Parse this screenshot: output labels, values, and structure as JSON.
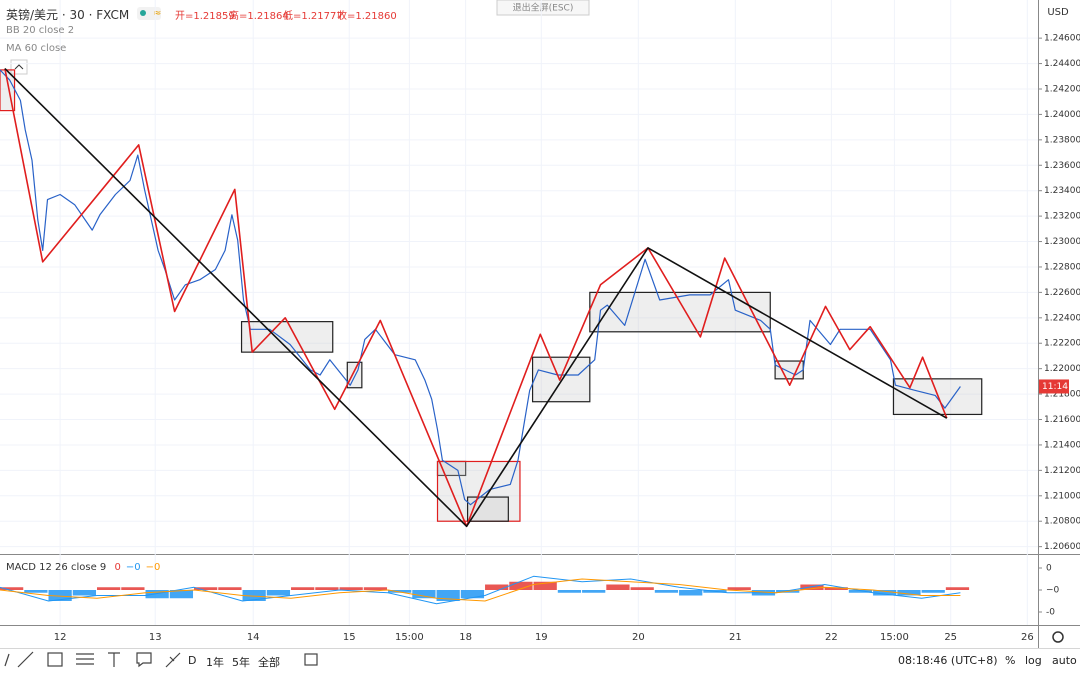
{
  "header": {
    "symbol": "英镑/美元 · 30 · FXCM",
    "ohlc": [
      "开=1.21859",
      "高=1.21864",
      "低=1.21777",
      "收=1.21860"
    ],
    "exit_fullscreen": "退出全屏(ESC)",
    "indicators": [
      "BB 20 close 2",
      "MA 60 close"
    ]
  },
  "chart_data": [
    {
      "type": "line",
      "currency": "USD",
      "price_tag": "11:14",
      "xlim": [
        0,
        10.7
      ],
      "ylim": [
        1.2055,
        1.249
      ],
      "xticks": [
        {
          "value": 0.62,
          "label": "12"
        },
        {
          "value": 1.6,
          "label": "13"
        },
        {
          "value": 2.61,
          "label": "14"
        },
        {
          "value": 3.6,
          "label": "15"
        },
        {
          "value": 4.22,
          "label": "15:00"
        },
        {
          "value": 4.8,
          "label": "18"
        },
        {
          "value": 5.58,
          "label": "19"
        },
        {
          "value": 6.58,
          "label": "20"
        },
        {
          "value": 7.58,
          "label": "21"
        },
        {
          "value": 8.57,
          "label": "22"
        },
        {
          "value": 9.22,
          "label": "15:00"
        },
        {
          "value": 9.8,
          "label": "25"
        },
        {
          "value": 10.59,
          "label": "26"
        }
      ],
      "yticks": [
        {
          "value": 1.246,
          "label": "1.24600"
        },
        {
          "value": 1.244,
          "label": "1.24400"
        },
        {
          "value": 1.242,
          "label": "1.24200"
        },
        {
          "value": 1.24,
          "label": "1.24000"
        },
        {
          "value": 1.238,
          "label": "1.23800"
        },
        {
          "value": 1.236,
          "label": "1.23600"
        },
        {
          "value": 1.234,
          "label": "1.23400"
        },
        {
          "value": 1.232,
          "label": "1.23200"
        },
        {
          "value": 1.23,
          "label": "1.23000"
        },
        {
          "value": 1.228,
          "label": "1.22800"
        },
        {
          "value": 1.226,
          "label": "1.22600"
        },
        {
          "value": 1.224,
          "label": "1.22400"
        },
        {
          "value": 1.222,
          "label": "1.22200"
        },
        {
          "value": 1.22,
          "label": "1.22000"
        },
        {
          "value": 1.218,
          "label": "1.21800"
        },
        {
          "value": 1.216,
          "label": "1.21600"
        },
        {
          "value": 1.214,
          "label": "1.21400"
        },
        {
          "value": 1.212,
          "label": "1.21200"
        },
        {
          "value": 1.21,
          "label": "1.21000"
        },
        {
          "value": 1.208,
          "label": "1.20800"
        },
        {
          "value": 1.206,
          "label": "1.20600"
        }
      ],
      "grid": true,
      "series": [
        {
          "color": "#2962c8",
          "width": 1.2,
          "x": [
            0,
            0.1,
            0.21,
            0.26,
            0.33,
            0.39,
            0.44,
            0.49,
            0.62,
            0.77,
            0.95,
            1.03,
            1.19,
            1.34,
            1.42,
            1.49,
            1.63,
            1.7,
            1.8,
            1.91,
            2.06,
            2.22,
            2.32,
            2.39,
            2.45,
            2.51,
            2.58,
            2.78,
            2.99,
            3.2,
            3.3,
            3.4,
            3.61,
            3.69,
            3.76,
            3.87,
            4.07,
            4.28,
            4.38,
            4.45,
            4.51,
            4.56,
            4.72,
            4.79,
            4.85,
            5.05,
            5.26,
            5.34,
            5.41,
            5.46,
            5.55,
            5.75,
            5.96,
            6.13,
            6.19,
            6.26,
            6.44,
            6.65,
            6.8,
            7.11,
            7.32,
            7.51,
            7.58,
            7.84,
            7.94,
            7.99,
            8.2,
            8.28,
            8.35,
            8.56,
            8.66,
            8.97,
            9.18,
            9.23,
            9.43,
            9.64,
            9.74,
            9.9
          ],
          "values": [
            1.2435,
            1.2427,
            1.2411,
            1.2388,
            1.2364,
            1.2317,
            1.2293,
            1.2333,
            1.2337,
            1.2329,
            1.2309,
            1.2321,
            1.2337,
            1.2348,
            1.2368,
            1.2341,
            1.2293,
            1.2278,
            1.2254,
            1.2266,
            1.227,
            1.2278,
            1.2293,
            1.2321,
            1.2301,
            1.2254,
            1.2231,
            1.2231,
            1.2219,
            1.2199,
            1.2195,
            1.2207,
            1.2187,
            1.2199,
            1.2223,
            1.2231,
            1.2211,
            1.2207,
            1.2191,
            1.2176,
            1.2152,
            1.2128,
            1.212,
            1.2097,
            1.2093,
            1.2105,
            1.2109,
            1.2128,
            1.216,
            1.2183,
            1.2199,
            1.2195,
            1.2195,
            1.2207,
            1.2246,
            1.225,
            1.2234,
            1.2286,
            1.2254,
            1.2258,
            1.2258,
            1.227,
            1.2246,
            1.2238,
            1.2231,
            1.2203,
            1.2195,
            1.2199,
            1.2238,
            1.2219,
            1.2231,
            1.2231,
            1.2207,
            1.2187,
            1.2183,
            1.2179,
            1.2169,
            1.2186
          ]
        },
        {
          "color": "#e01e1e",
          "width": 1.6,
          "x": [
            0.05,
            0.44,
            1.43,
            1.8,
            2.42,
            2.6,
            2.94,
            3.45,
            3.92,
            4.81,
            5.57,
            5.77,
            6.19,
            6.68,
            7.22,
            7.47,
            8.14,
            8.51,
            8.76,
            8.97,
            9.38,
            9.51,
            9.76
          ],
          "values": [
            1.2436,
            1.2284,
            1.2376,
            1.2245,
            1.2341,
            1.2213,
            1.224,
            1.2168,
            1.2238,
            1.2076,
            1.2227,
            1.2191,
            1.2266,
            1.2295,
            1.2225,
            1.2287,
            1.2187,
            1.2249,
            1.2215,
            1.2233,
            1.2185,
            1.2209,
            1.2161
          ]
        },
        {
          "color": "#111111",
          "width": 1.6,
          "x": [
            0.05,
            4.81,
            6.68,
            9.76
          ],
          "values": [
            1.2436,
            1.2076,
            1.2295,
            1.2161
          ]
        }
      ],
      "zones": [
        {
          "x0": 0,
          "x1": 0.15,
          "lo": 1.2403,
          "hi": 1.2435,
          "color": "#e01e1e"
        },
        {
          "x0": 2.49,
          "x1": 3.43,
          "lo": 1.2213,
          "hi": 1.2237,
          "color": "#222222"
        },
        {
          "x0": 3.58,
          "x1": 3.73,
          "lo": 1.2185,
          "hi": 1.2205,
          "color": "#222222"
        },
        {
          "x0": 4.51,
          "x1": 4.8,
          "lo": 1.2116,
          "hi": 1.2127,
          "color": "#222222"
        },
        {
          "x0": 4.51,
          "x1": 5.36,
          "lo": 1.208,
          "hi": 1.2127,
          "color": "#e01e1e"
        },
        {
          "x0": 4.82,
          "x1": 5.24,
          "lo": 1.208,
          "hi": 1.2099,
          "color": "#222222"
        },
        {
          "x0": 5.49,
          "x1": 6.08,
          "lo": 1.2174,
          "hi": 1.2209,
          "color": "#222222"
        },
        {
          "x0": 6.08,
          "x1": 7.94,
          "lo": 1.2229,
          "hi": 1.226,
          "color": "#222222"
        },
        {
          "x0": 7.99,
          "x1": 8.28,
          "lo": 1.2192,
          "hi": 1.2206,
          "color": "#222222"
        },
        {
          "x0": 9.21,
          "x1": 10.12,
          "lo": 1.2164,
          "hi": 1.2192,
          "color": "#222222"
        }
      ]
    },
    {
      "type": "macd",
      "title": "MACD 12 26 close 9",
      "readouts": [
        {
          "label": "0",
          "color": "#e53935"
        },
        {
          "label": "−0",
          "color": "#2196f3"
        },
        {
          "label": "−0",
          "color": "#ff9800"
        }
      ],
      "xlim": [
        0,
        10.7
      ],
      "ylim": [
        -0.0012,
        0.0012
      ],
      "yticks": [
        {
          "value": 0.0008,
          "label": "0"
        },
        {
          "value": 0,
          "label": "−0"
        },
        {
          "value": -0.0008,
          "label": "-0"
        }
      ],
      "bar_width": 0.25,
      "bar_x": [
        0,
        0.25,
        0.5,
        0.75,
        1,
        1.25,
        1.5,
        1.75,
        2,
        2.25,
        2.5,
        2.75,
        3,
        3.25,
        3.5,
        3.75,
        4,
        4.25,
        4.5,
        4.75,
        5,
        5.25,
        5.5,
        5.75,
        6,
        6.25,
        6.5,
        6.75,
        7,
        7.25,
        7.5,
        7.75,
        8,
        8.25,
        8.5,
        8.75,
        9,
        9.25,
        9.5,
        9.75
      ],
      "histogram": [
        0.0001,
        -0.0001,
        -0.0004,
        -0.0002,
        0.0001,
        0.0001,
        -0.0003,
        -0.0003,
        0.0001,
        0.0001,
        -0.0004,
        -0.0002,
        0.0001,
        0.0001,
        0.0001,
        0.0001,
        -0.0001,
        -0.0003,
        -0.0004,
        -0.0003,
        0.0002,
        0.0003,
        0.0003,
        -0.0001,
        -0.0001,
        0.0002,
        0.0001,
        -0.0001,
        -0.0002,
        -0.0001,
        0.0001,
        -0.0002,
        -0.0001,
        0.0002,
        0.0001,
        -0.0001,
        -0.0002,
        -0.0002,
        -0.0001,
        0.0001
      ],
      "up_color": "#e53935",
      "down_color": "#2196f3",
      "x": [
        0,
        0.5,
        1,
        1.5,
        2,
        2.5,
        3,
        3.5,
        4,
        4.5,
        5,
        5.5,
        6,
        6.5,
        7,
        7.5,
        8,
        8.5,
        9,
        9.5,
        9.9
      ],
      "series": [
        {
          "color": "#2196f3",
          "values": [
            0.0001,
            -0.0004,
            -0.0002,
            -0.0002,
            0.0001,
            -0.0004,
            -0.0002,
            0,
            -0.0001,
            -0.0005,
            -0.0002,
            0.0005,
            0.0003,
            0.0004,
            0.0001,
            -0.0001,
            -0.0001,
            0.0002,
            -0.0001,
            -0.0003,
            -0.0001
          ]
        },
        {
          "color": "#ff9800",
          "values": [
            0,
            -0.0002,
            -0.0003,
            -0.0001,
            0,
            -0.0002,
            -0.0003,
            -0.0001,
            0,
            -0.0003,
            -0.0004,
            0.0002,
            0.0004,
            0.0003,
            0.0002,
            0,
            -0.0001,
            0.0001,
            0,
            -0.0002,
            -0.0002
          ]
        }
      ]
    }
  ],
  "toolbar": {
    "ranges": [
      "D",
      "1年",
      "5年",
      "全部"
    ],
    "clock": "08:18:46 (UTC+8)",
    "options": [
      "%",
      "log",
      "auto"
    ]
  }
}
